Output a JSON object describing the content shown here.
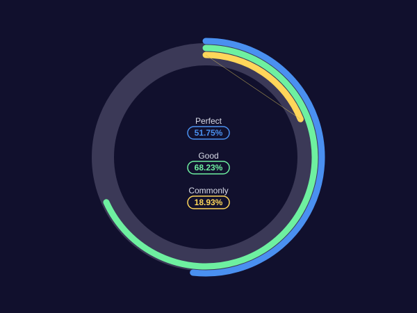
{
  "chart_data": {
    "type": "radial-bar",
    "title": "",
    "value_unit": "%",
    "max": 100,
    "track_color": "#3b3957",
    "background_color": "#11102d",
    "series": [
      {
        "name": "Perfect",
        "value": 51.75,
        "display": "51.75%",
        "color": "#4a90f0"
      },
      {
        "name": "Good",
        "value": 68.23,
        "display": "68.23%",
        "color": "#6ef0a0"
      },
      {
        "name": "Commonly",
        "value": 18.93,
        "display": "18.93%",
        "color": "#ffd65a"
      }
    ]
  }
}
